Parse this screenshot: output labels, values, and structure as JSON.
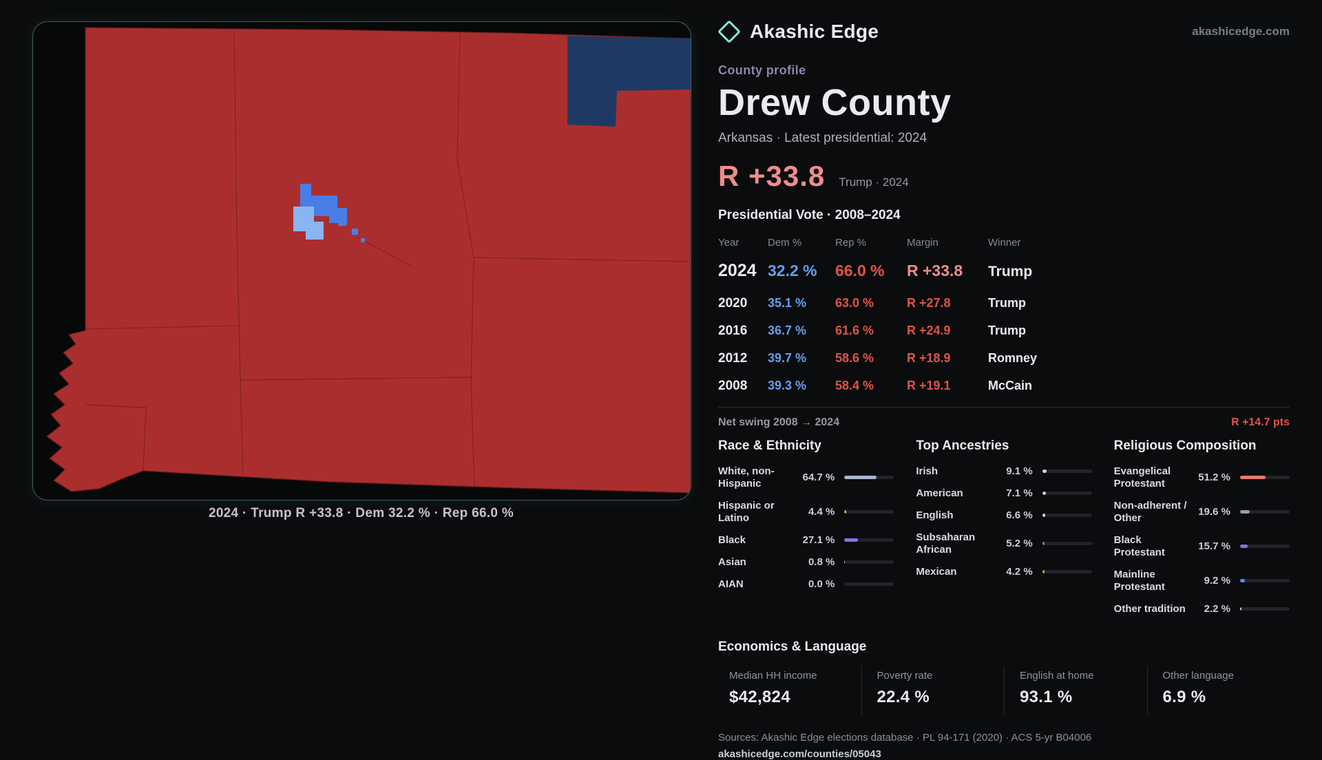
{
  "brand": {
    "name": "Akashic Edge",
    "domain": "akashicedge.com"
  },
  "theme": {
    "dem": "#64a0e8",
    "rep": "#e05348",
    "headline": "#f08c8c",
    "teal": "#86e7de",
    "kicker": "#8e85a8"
  },
  "map": {
    "caption": "2024 · Trump R +33.8 · Dem 32.2 % · Rep 66.0 %",
    "colors": {
      "republican": "#ab2e2e",
      "dem_dark": "#1e3a64",
      "dem_mid": "#4a7de8",
      "dem_light": "#8ab4f2"
    }
  },
  "profile": {
    "kicker": "County profile",
    "title": "Drew County",
    "subtitle": "Arkansas · Latest presidential: 2024",
    "headline_margin": "R +33.8",
    "headline_note": "Trump · 2024"
  },
  "vote_table": {
    "title": "Presidential Vote · 2008–2024",
    "columns": [
      "Year",
      "Dem %",
      "Rep %",
      "Margin",
      "Winner"
    ],
    "rows": [
      {
        "year": "2024",
        "dem": "32.2 %",
        "rep": "66.0 %",
        "margin": "R +33.8",
        "winner": "Trump"
      },
      {
        "year": "2020",
        "dem": "35.1 %",
        "rep": "63.0 %",
        "margin": "R +27.8",
        "winner": "Trump"
      },
      {
        "year": "2016",
        "dem": "36.7 %",
        "rep": "61.6 %",
        "margin": "R +24.9",
        "winner": "Trump"
      },
      {
        "year": "2012",
        "dem": "39.7 %",
        "rep": "58.6 %",
        "margin": "R +18.9",
        "winner": "Romney"
      },
      {
        "year": "2008",
        "dem": "39.3 %",
        "rep": "58.4 %",
        "margin": "R +19.1",
        "winner": "McCain"
      }
    ]
  },
  "net_swing": {
    "label": "Net swing 2008 → 2024",
    "value": "R +14.7 pts"
  },
  "demographics": [
    {
      "title": "Race & Ethnicity",
      "rows": [
        {
          "label": "White, non-Hispanic",
          "value": "64.7 %",
          "pct": 64.7,
          "color": "#aab4d4"
        },
        {
          "label": "Hispanic or Latino",
          "value": "4.4 %",
          "pct": 4.4,
          "color": "#e8a33c"
        },
        {
          "label": "Black",
          "value": "27.1 %",
          "pct": 27.1,
          "color": "#8b6fe8"
        },
        {
          "label": "Asian",
          "value": "0.8 %",
          "pct": 0.8,
          "color": "#d8d8d8"
        },
        {
          "label": "AIAN",
          "value": "0.0 %",
          "pct": 0.0,
          "color": "#d8d8d8"
        }
      ]
    },
    {
      "title": "Top Ancestries",
      "rows": [
        {
          "label": "Irish",
          "value": "9.1 %",
          "pct": 9.1,
          "color": "#cfd4dc"
        },
        {
          "label": "American",
          "value": "7.1 %",
          "pct": 7.1,
          "color": "#cfd4dc"
        },
        {
          "label": "English",
          "value": "6.6 %",
          "pct": 6.6,
          "color": "#cfd4dc"
        },
        {
          "label": "Subsaharan African",
          "value": "5.2 %",
          "pct": 5.2,
          "color": "#8b6fe8"
        },
        {
          "label": "Mexican",
          "value": "4.2 %",
          "pct": 4.2,
          "color": "#e8a33c"
        }
      ]
    },
    {
      "title": "Religious Composition",
      "rows": [
        {
          "label": "Evangelical Protestant",
          "value": "51.2 %",
          "pct": 51.2,
          "color": "#e87a72"
        },
        {
          "label": "Non-adherent / Other",
          "value": "19.6 %",
          "pct": 19.6,
          "color": "#9aa0a8"
        },
        {
          "label": "Black Protestant",
          "value": "15.7 %",
          "pct": 15.7,
          "color": "#8b6fe8"
        },
        {
          "label": "Mainline Protestant",
          "value": "9.2 %",
          "pct": 9.2,
          "color": "#5b8fe8"
        },
        {
          "label": "Other tradition",
          "value": "2.2 %",
          "pct": 2.2,
          "color": "#cfd4dc"
        }
      ]
    }
  ],
  "economics": {
    "title": "Economics & Language",
    "stats": [
      {
        "label": "Median HH income",
        "value": "$42,824"
      },
      {
        "label": "Poverty rate",
        "value": "22.4 %"
      },
      {
        "label": "English at home",
        "value": "93.1 %"
      },
      {
        "label": "Other language",
        "value": "6.9 %"
      }
    ]
  },
  "footer": {
    "sources": "Sources: Akashic Edge elections database · PL 94-171 (2020) · ACS 5-yr B04006",
    "permalink": "akashicedge.com/counties/05043"
  }
}
